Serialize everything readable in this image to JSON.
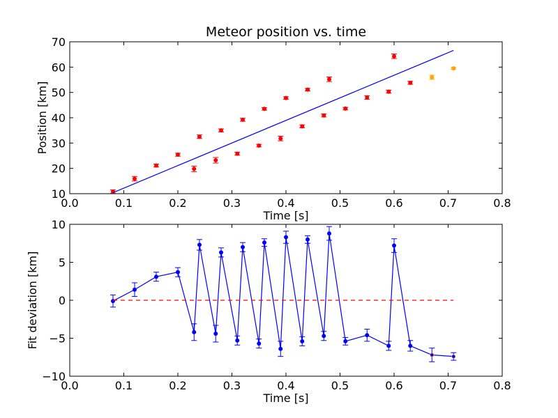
{
  "chart_data": [
    {
      "type": "scatter",
      "title": "Meteor position vs. time",
      "xlabel": "Time [s]",
      "ylabel": "Position [km]",
      "xlim": [
        0.0,
        0.8
      ],
      "ylim": [
        10,
        70
      ],
      "xticks": [
        "0.0",
        "0.1",
        "0.2",
        "0.3",
        "0.4",
        "0.5",
        "0.6",
        "0.7",
        "0.8"
      ],
      "yticks": [
        "10",
        "20",
        "30",
        "40",
        "50",
        "60",
        "70"
      ],
      "grid": false,
      "series": [
        {
          "color": "#ff0000",
          "marker": "point-with-errorbar",
          "points": [
            {
              "x": 0.08,
              "y": 10.8,
              "err": 0.7
            },
            {
              "x": 0.12,
              "y": 15.9,
              "err": 0.9
            },
            {
              "x": 0.16,
              "y": 21.1,
              "err": 0.6
            },
            {
              "x": 0.2,
              "y": 25.4,
              "err": 0.6
            },
            {
              "x": 0.23,
              "y": 19.8,
              "err": 1.1
            },
            {
              "x": 0.24,
              "y": 32.5,
              "err": 0.7
            },
            {
              "x": 0.27,
              "y": 23.2,
              "err": 1.1
            },
            {
              "x": 0.28,
              "y": 35.0,
              "err": 0.6
            },
            {
              "x": 0.31,
              "y": 25.8,
              "err": 0.6
            },
            {
              "x": 0.32,
              "y": 39.2,
              "err": 0.6
            },
            {
              "x": 0.35,
              "y": 29.0,
              "err": 0.5
            },
            {
              "x": 0.36,
              "y": 43.5,
              "err": 0.5
            },
            {
              "x": 0.39,
              "y": 31.8,
              "err": 0.9
            },
            {
              "x": 0.4,
              "y": 47.8,
              "err": 0.5
            },
            {
              "x": 0.43,
              "y": 36.6,
              "err": 0.6
            },
            {
              "x": 0.44,
              "y": 51.1,
              "err": 0.5
            },
            {
              "x": 0.47,
              "y": 40.9,
              "err": 0.6
            },
            {
              "x": 0.48,
              "y": 55.2,
              "err": 0.9
            },
            {
              "x": 0.51,
              "y": 43.6,
              "err": 0.5
            },
            {
              "x": 0.55,
              "y": 48.0,
              "err": 0.7
            },
            {
              "x": 0.59,
              "y": 50.3,
              "err": 0.6
            },
            {
              "x": 0.6,
              "y": 64.3,
              "err": 0.9
            },
            {
              "x": 0.63,
              "y": 53.8,
              "err": 0.6
            }
          ]
        },
        {
          "color": "#ffa500",
          "marker": "point-with-errorbar",
          "points": [
            {
              "x": 0.67,
              "y": 56.0,
              "err": 0.8
            },
            {
              "x": 0.71,
              "y": 59.5,
              "err": 0.4
            }
          ]
        },
        {
          "color": "#0000ff",
          "kind": "fit-line",
          "points": [
            {
              "x": 0.08,
              "y": 10.4
            },
            {
              "x": 0.71,
              "y": 66.6
            }
          ]
        }
      ]
    },
    {
      "type": "line",
      "xlabel": "Time [s]",
      "ylabel": "Fit deviation [km]",
      "xlim": [
        0.0,
        0.8
      ],
      "ylim": [
        -10,
        10
      ],
      "xticks": [
        "0.0",
        "0.1",
        "0.2",
        "0.3",
        "0.4",
        "0.5",
        "0.6",
        "0.7",
        "0.8"
      ],
      "yticks": [
        "−10",
        "−5",
        "0",
        "5",
        "10"
      ],
      "grid": false,
      "series": [
        {
          "color": "#0000ff",
          "marker": "point-with-errorbar",
          "points": [
            {
              "x": 0.08,
              "y": -0.1,
              "err": 0.8
            },
            {
              "x": 0.12,
              "y": 1.4,
              "err": 0.9
            },
            {
              "x": 0.16,
              "y": 3.1,
              "err": 0.6
            },
            {
              "x": 0.2,
              "y": 3.7,
              "err": 0.6
            },
            {
              "x": 0.23,
              "y": -4.2,
              "err": 1.1
            },
            {
              "x": 0.24,
              "y": 7.3,
              "err": 0.7
            },
            {
              "x": 0.27,
              "y": -4.4,
              "err": 1.1
            },
            {
              "x": 0.28,
              "y": 6.3,
              "err": 0.6
            },
            {
              "x": 0.31,
              "y": -5.3,
              "err": 0.6
            },
            {
              "x": 0.32,
              "y": 7.0,
              "err": 0.6
            },
            {
              "x": 0.35,
              "y": -5.7,
              "err": 0.6
            },
            {
              "x": 0.36,
              "y": 7.6,
              "err": 0.5
            },
            {
              "x": 0.39,
              "y": -6.4,
              "err": 1.0
            },
            {
              "x": 0.4,
              "y": 8.3,
              "err": 0.8
            },
            {
              "x": 0.43,
              "y": -5.4,
              "err": 0.6
            },
            {
              "x": 0.44,
              "y": 8.0,
              "err": 0.5
            },
            {
              "x": 0.47,
              "y": -4.7,
              "err": 0.6
            },
            {
              "x": 0.48,
              "y": 8.8,
              "err": 0.9
            },
            {
              "x": 0.51,
              "y": -5.4,
              "err": 0.5
            },
            {
              "x": 0.55,
              "y": -4.6,
              "err": 0.8
            },
            {
              "x": 0.59,
              "y": -6.0,
              "err": 0.6
            },
            {
              "x": 0.6,
              "y": 7.2,
              "err": 0.9
            },
            {
              "x": 0.63,
              "y": -6.0,
              "err": 0.7
            },
            {
              "x": 0.67,
              "y": -7.2,
              "err": 0.9
            },
            {
              "x": 0.71,
              "y": -7.4,
              "err": 0.5
            }
          ]
        },
        {
          "color": "#ff0000",
          "kind": "dashed-zero-line",
          "points": [
            {
              "x": 0.08,
              "y": 0
            },
            {
              "x": 0.71,
              "y": 0
            }
          ]
        }
      ]
    }
  ]
}
